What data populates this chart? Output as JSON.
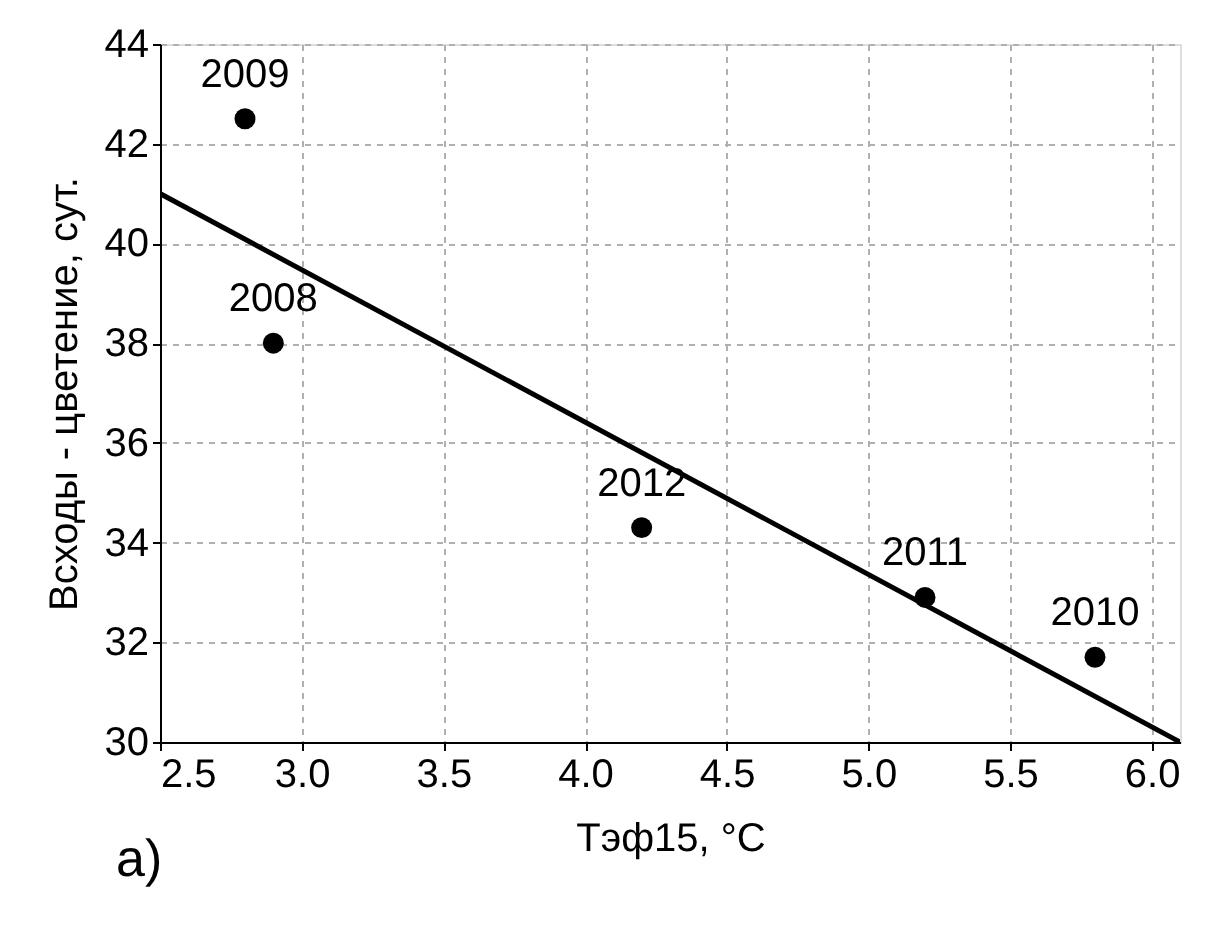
{
  "chart_data": {
    "type": "scatter",
    "xlabel": "Tэф15, °C",
    "ylabel": "Всходы - цветение, сут.",
    "xlim": [
      2.5,
      6.1
    ],
    "ylim": [
      30,
      44
    ],
    "xticks": [
      {
        "value": 2.5,
        "label": "2.5"
      },
      {
        "value": 3,
        "label": "3.0"
      },
      {
        "value": 3.5,
        "label": "3.5"
      },
      {
        "value": 4,
        "label": "4.0"
      },
      {
        "value": 4.5,
        "label": "4.5"
      },
      {
        "value": 5,
        "label": "5.0"
      },
      {
        "value": 5.5,
        "label": "5.5"
      },
      {
        "value": 6,
        "label": "6.0"
      }
    ],
    "yticks": [
      30,
      32,
      34,
      36,
      38,
      40,
      42,
      44
    ],
    "grid": true,
    "marker": "circle",
    "series": [
      {
        "color": "#000000",
        "x": [
          2.8,
          2.9,
          4.2,
          5.2,
          5.8
        ],
        "values": [
          42.5,
          38.0,
          34.3,
          32.9,
          31.7
        ]
      },
      {
        "type": "line",
        "color": "#000000",
        "line_style": "solid",
        "marker": "none",
        "x": [
          2.5,
          6.1
        ],
        "values": [
          41.0,
          30.0
        ]
      }
    ],
    "annotations": [
      {
        "text": "2009",
        "x": 2.8,
        "y": 42.5
      },
      {
        "text": "2008",
        "x": 2.9,
        "y": 38.0
      },
      {
        "text": "2012",
        "x": 4.2,
        "y": 34.3
      },
      {
        "text": "2011",
        "x": 5.2,
        "y": 32.9
      },
      {
        "text": "2010",
        "x": 5.8,
        "y": 31.7
      },
      "a)"
    ]
  }
}
